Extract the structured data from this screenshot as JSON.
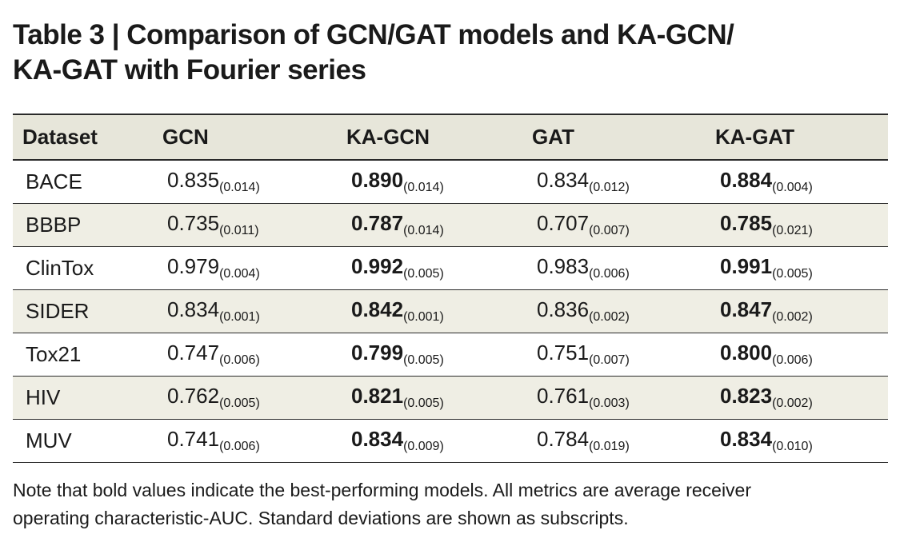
{
  "title": {
    "line1": "Table 3 | Comparison of GCN/GAT models and KA-GCN/",
    "line2": "KA-GAT with Fourier series"
  },
  "table": {
    "headers": [
      "Dataset",
      "GCN",
      "KA-GCN",
      "GAT",
      "KA-GAT"
    ],
    "rows": [
      {
        "dataset": "BACE",
        "gcn": "0.835",
        "gcn_sd": "(0.014)",
        "kagcn": "0.890",
        "kagcn_sd": "(0.014)",
        "gat": "0.834",
        "gat_sd": "(0.012)",
        "kagat": "0.884",
        "kagat_sd": "(0.004)"
      },
      {
        "dataset": "BBBP",
        "gcn": "0.735",
        "gcn_sd": "(0.011)",
        "kagcn": "0.787",
        "kagcn_sd": "(0.014)",
        "gat": "0.707",
        "gat_sd": "(0.007)",
        "kagat": "0.785",
        "kagat_sd": "(0.021)"
      },
      {
        "dataset": "ClinTox",
        "gcn": "0.979",
        "gcn_sd": "(0.004)",
        "kagcn": "0.992",
        "kagcn_sd": "(0.005)",
        "gat": "0.983",
        "gat_sd": "(0.006)",
        "kagat": "0.991",
        "kagat_sd": "(0.005)"
      },
      {
        "dataset": "SIDER",
        "gcn": "0.834",
        "gcn_sd": "(0.001)",
        "kagcn": "0.842",
        "kagcn_sd": "(0.001)",
        "gat": "0.836",
        "gat_sd": "(0.002)",
        "kagat": "0.847",
        "kagat_sd": "(0.002)"
      },
      {
        "dataset": "Tox21",
        "gcn": "0.747",
        "gcn_sd": "(0.006)",
        "kagcn": "0.799",
        "kagcn_sd": "(0.005)",
        "gat": "0.751",
        "gat_sd": "(0.007)",
        "kagat": "0.800",
        "kagat_sd": "(0.006)"
      },
      {
        "dataset": "HIV",
        "gcn": "0.762",
        "gcn_sd": "(0.005)",
        "kagcn": "0.821",
        "kagcn_sd": "(0.005)",
        "gat": "0.761",
        "gat_sd": "(0.003)",
        "kagat": "0.823",
        "kagat_sd": "(0.002)"
      },
      {
        "dataset": "MUV",
        "gcn": "0.741",
        "gcn_sd": "(0.006)",
        "kagcn": "0.834",
        "kagcn_sd": "(0.009)",
        "gat": "0.784",
        "gat_sd": "(0.019)",
        "kagat": "0.834",
        "kagat_sd": "(0.010)"
      }
    ]
  },
  "note": {
    "line1": "Note that bold values indicate the best-performing models. All metrics are average receiver",
    "line2": "operating characteristic-AUC. Standard deviations are shown as subscripts."
  },
  "colors": {
    "header_bg": "#e7e6da",
    "alt_row_bg": "#efeee4",
    "rule": "#2a2a2a"
  }
}
